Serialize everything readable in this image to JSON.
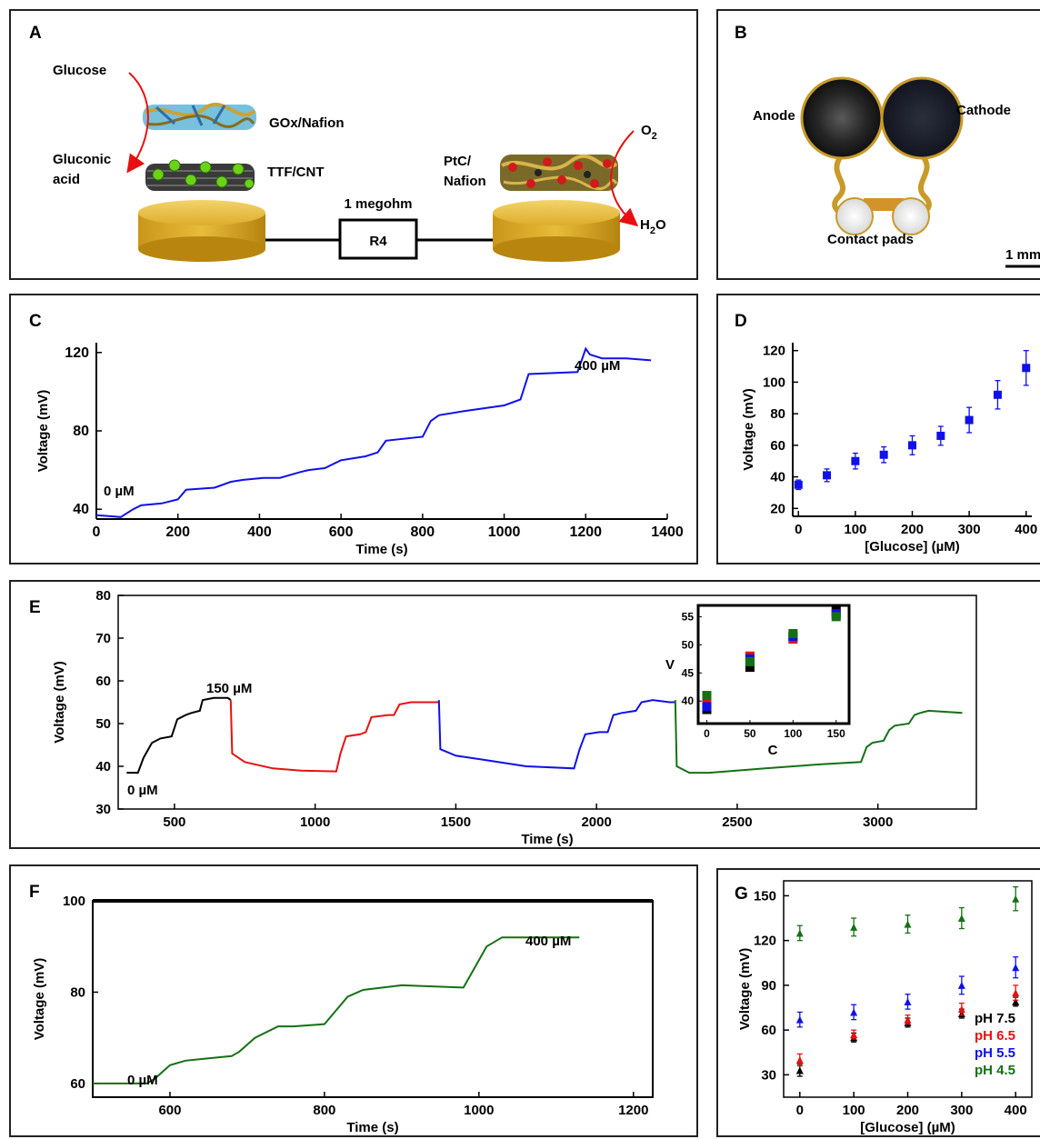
{
  "panels": {
    "A": {
      "label": "A",
      "glucose": "Glucose",
      "gox": "GOx/Nafion",
      "gluconic1": "Gluconic",
      "gluconic2": "acid",
      "ttf": "TTF/CNT",
      "megohm": "1 megohm",
      "resistor": "R4",
      "ptc1": "PtC/",
      "ptc2": "Nafion",
      "o2": "O",
      "o2sub": "2",
      "h2o_h": "H",
      "h2o_sub": "2",
      "h2o_o": "O"
    },
    "B": {
      "label": "B",
      "anode": "Anode",
      "cathode": "Cathode",
      "pads": "Contact pads",
      "scale": "1 mm"
    }
  },
  "colors": {
    "blue": "#1010e8",
    "red": "#e81010",
    "green": "#157015",
    "black": "#000000",
    "gold": "#d4a51a"
  },
  "chart_data": [
    {
      "id": "C",
      "label": "C",
      "type": "line",
      "xlabel": "Time (s)",
      "ylabel": "Voltage (mV)",
      "xlim": [
        0,
        1400
      ],
      "ylim": [
        35,
        125
      ],
      "xticks": [
        "0",
        "200",
        "400",
        "600",
        "800",
        "1000",
        "1200",
        "1400"
      ],
      "yticks": [
        "40",
        "80",
        "120"
      ],
      "annotations": [
        "0 µM",
        "400 µM"
      ],
      "series": [
        {
          "color": "#1010e8",
          "x": [
            0,
            60,
            90,
            110,
            160,
            200,
            220,
            290,
            330,
            360,
            410,
            450,
            500,
            520,
            560,
            600,
            660,
            690,
            710,
            800,
            820,
            840,
            900,
            1000,
            1040,
            1060,
            1180,
            1200,
            1210,
            1240,
            1300,
            1360
          ],
          "y": [
            37,
            36,
            40,
            42,
            43,
            45,
            50,
            51,
            54,
            55,
            56,
            56,
            59,
            60,
            61,
            65,
            67,
            69,
            75,
            77,
            85,
            88,
            90,
            93,
            96,
            109,
            110,
            122,
            119,
            117,
            117,
            116
          ]
        }
      ]
    },
    {
      "id": "D",
      "label": "D",
      "type": "scatter",
      "xlabel": "[Glucose] (µM)",
      "ylabel": "Voltage (mV)",
      "xlim": [
        0,
        400
      ],
      "ylim": [
        20,
        120
      ],
      "xticks": [
        "0",
        "100",
        "200",
        "300",
        "400"
      ],
      "yticks": [
        "20",
        "40",
        "60",
        "80",
        "100",
        "120"
      ],
      "series": [
        {
          "color": "#1010e8",
          "x": [
            0,
            50,
            100,
            150,
            200,
            250,
            300,
            350,
            400
          ],
          "y": [
            35,
            41,
            50,
            54,
            60,
            66,
            76,
            92,
            109
          ],
          "err": [
            3,
            4,
            5,
            5,
            6,
            6,
            8,
            9,
            11
          ]
        }
      ]
    },
    {
      "id": "E",
      "label": "E",
      "type": "line",
      "xlabel": "Time (s)",
      "ylabel": "Voltage (mV)",
      "xlim": [
        300,
        3350
      ],
      "ylim": [
        30,
        80
      ],
      "xticks": [
        "500",
        "1000",
        "1500",
        "2000",
        "2500",
        "3000"
      ],
      "yticks": [
        "30",
        "40",
        "50",
        "60",
        "70",
        "80"
      ],
      "annotations": [
        "150 µM",
        "0 µM"
      ],
      "series": [
        {
          "color": "#000000",
          "x": [
            330,
            370,
            390,
            420,
            450,
            490,
            510,
            540,
            560,
            590,
            600,
            640,
            690,
            700
          ],
          "y": [
            38.5,
            38.5,
            42,
            45.5,
            46.5,
            47,
            51,
            52,
            52.5,
            53,
            55.5,
            56,
            56,
            55.5
          ]
        },
        {
          "color": "#e81010",
          "x": [
            700,
            705,
            750,
            850,
            950,
            1075,
            1090,
            1110,
            1160,
            1180,
            1200,
            1260,
            1280,
            1300,
            1340,
            1350,
            1420,
            1440
          ],
          "y": [
            55.5,
            43,
            41,
            39.5,
            39,
            38.8,
            43,
            47,
            47.5,
            48,
            51.5,
            52,
            52,
            54.5,
            55,
            55,
            55,
            55
          ]
        },
        {
          "color": "#1010e8",
          "x": [
            1440,
            1445,
            1500,
            1600,
            1750,
            1920,
            1940,
            1960,
            2010,
            2040,
            2060,
            2090,
            2140,
            2160,
            2200,
            2260,
            2280
          ],
          "y": [
            55.5,
            44,
            42.5,
            41.5,
            40,
            39.5,
            44,
            47.5,
            48,
            48,
            52,
            52.5,
            53,
            55,
            55.5,
            55,
            55
          ]
        },
        {
          "color": "#157015",
          "x": [
            2280,
            2285,
            2330,
            2400,
            2600,
            2800,
            2940,
            2960,
            2980,
            3020,
            3040,
            3060,
            3110,
            3130,
            3150,
            3180,
            3300
          ],
          "y": [
            55.5,
            40,
            38.5,
            38.5,
            39.5,
            40.5,
            41,
            44.5,
            45.5,
            46,
            48.5,
            49.5,
            50,
            52,
            52.5,
            53,
            52.5
          ]
        }
      ],
      "inset": {
        "type": "scatter",
        "xlabel": "C",
        "ylabel": "V",
        "xlim": [
          -10,
          165
        ],
        "ylim": [
          36,
          57
        ],
        "xticks": [
          "0",
          "50",
          "100",
          "150"
        ],
        "yticks": [
          "40",
          "45",
          "50",
          "55"
        ],
        "series": [
          {
            "color": "#000000",
            "x": [
              0,
              50,
              100,
              150
            ],
            "y": [
              38.5,
              46,
              51.5,
              56
            ]
          },
          {
            "color": "#e81010",
            "x": [
              0,
              50,
              100,
              150
            ],
            "y": [
              39.5,
              48,
              51,
              55.5
            ]
          },
          {
            "color": "#1010e8",
            "x": [
              0,
              50,
              100,
              150
            ],
            "y": [
              39,
              47.5,
              51.5,
              55.5
            ]
          },
          {
            "color": "#157015",
            "x": [
              0,
              50,
              100,
              150
            ],
            "y": [
              41,
              47,
              52,
              55
            ]
          }
        ]
      }
    },
    {
      "id": "F",
      "label": "F",
      "type": "line",
      "xlabel": "Time (s)",
      "ylabel": "Voltage (mV)",
      "xlim": [
        500,
        1225
      ],
      "ylim": [
        57,
        100
      ],
      "xticks": [
        "600",
        "800",
        "1000",
        "1200"
      ],
      "yticks": [
        "60",
        "80",
        "100"
      ],
      "annotations": [
        "0 µM",
        "400 µM"
      ],
      "series": [
        {
          "color": "#157015",
          "x": [
            500,
            570,
            580,
            600,
            620,
            650,
            680,
            690,
            710,
            740,
            760,
            800,
            810,
            830,
            850,
            900,
            980,
            990,
            1010,
            1030,
            1130
          ],
          "y": [
            60,
            60,
            61,
            64,
            65,
            65.5,
            66,
            67,
            70,
            72.5,
            72.5,
            73,
            75,
            79,
            80.5,
            81.5,
            81,
            84,
            90,
            92,
            92
          ]
        }
      ]
    },
    {
      "id": "G",
      "label": "G",
      "type": "scatter",
      "xlabel": "[Glucose] (µM)",
      "ylabel": "Voltage (mV)",
      "xlim": [
        -30,
        430
      ],
      "ylim": [
        15,
        160
      ],
      "xticks": [
        "0",
        "100",
        "200",
        "300",
        "400"
      ],
      "yticks": [
        "30",
        "60",
        "90",
        "120",
        "150"
      ],
      "series": [
        {
          "name": "pH 7.5",
          "color": "#000000",
          "x": [
            0,
            100,
            200,
            300,
            400
          ],
          "y": [
            33,
            55,
            65,
            71,
            79
          ],
          "err": [
            4,
            3,
            3,
            3,
            3
          ]
        },
        {
          "name": "pH 6.5",
          "color": "#e81010",
          "x": [
            0,
            100,
            200,
            300,
            400
          ],
          "y": [
            40,
            57,
            67,
            74,
            85
          ],
          "err": [
            4,
            3,
            3,
            4,
            5
          ]
        },
        {
          "name": "pH 5.5",
          "color": "#1010e8",
          "x": [
            0,
            100,
            200,
            300,
            400
          ],
          "y": [
            67,
            72,
            79,
            90,
            102
          ],
          "err": [
            5,
            5,
            5,
            6,
            7
          ]
        },
        {
          "name": "pH 4.5",
          "color": "#157015",
          "x": [
            0,
            100,
            200,
            300,
            400
          ],
          "y": [
            125,
            129,
            131,
            135,
            148
          ],
          "err": [
            5,
            6,
            6,
            7,
            8
          ]
        }
      ]
    }
  ]
}
